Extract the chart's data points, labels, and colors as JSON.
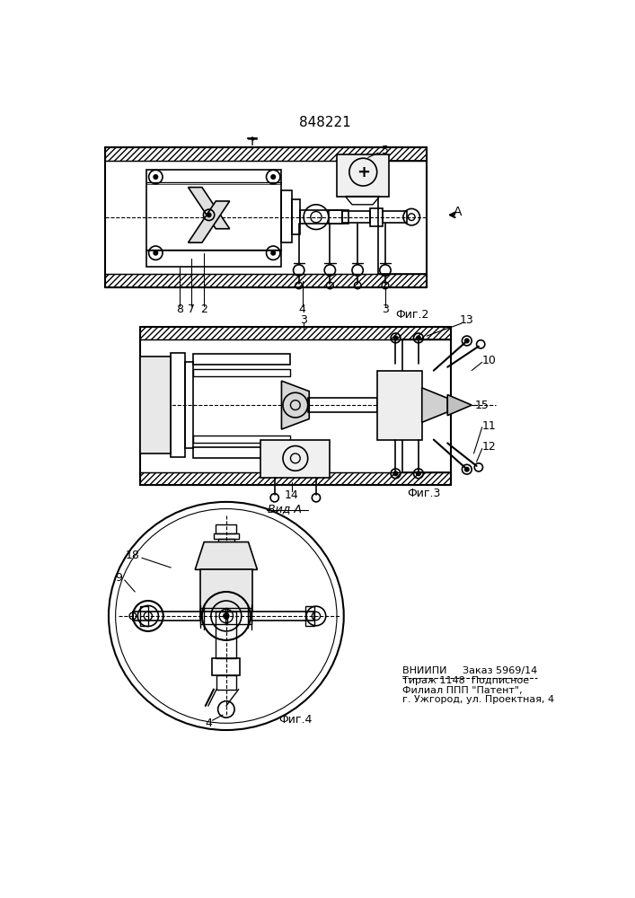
{
  "title": "848221",
  "fig2_label": "Фиг.2",
  "fig3_label": "Фиг.3",
  "fig4_label": "Фиг.4",
  "vid_label": "Вид А",
  "footer_text": "ВНИИПИ     Заказ 5969/14\nТираж 1148  Подписное\nФилиал ППП \"Патент\",\nг. Ужгород, ул. Проектная, 4",
  "bg_color": "#ffffff"
}
